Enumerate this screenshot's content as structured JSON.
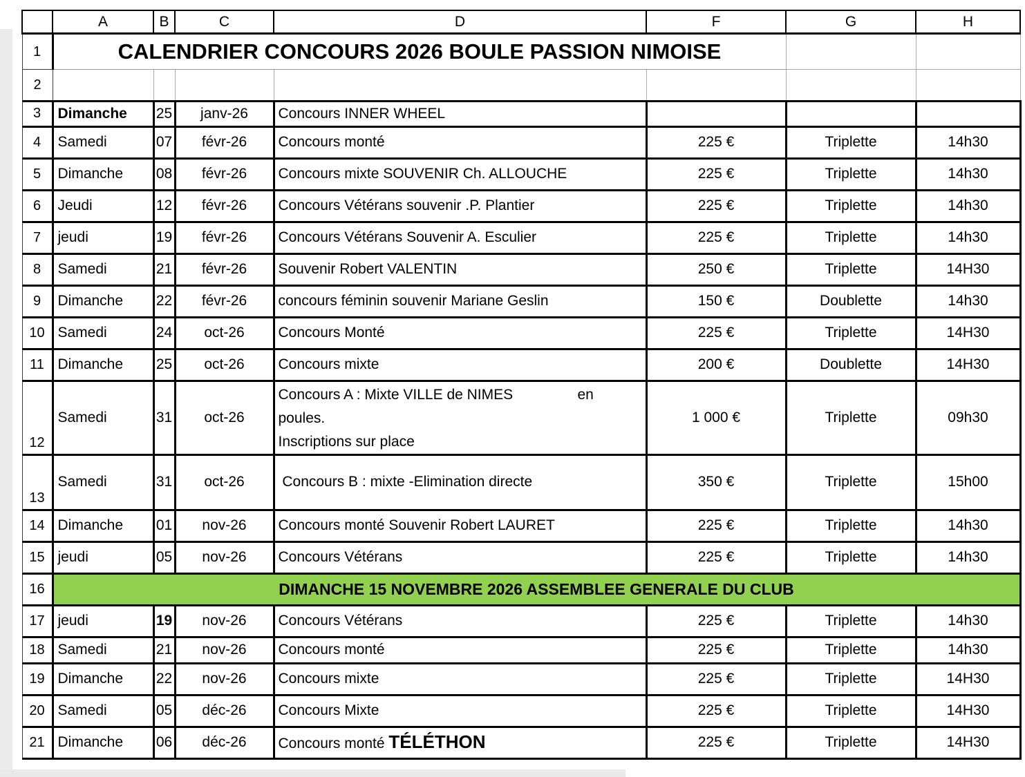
{
  "sheet": {
    "columns": [
      "A",
      "B",
      "C",
      "D",
      "F",
      "G",
      "H"
    ],
    "banner_color": "#92D050",
    "row1": {
      "n": "1",
      "title": "CALENDRIER CONCOURS 2026 BOULE PASSION NIMOISE"
    },
    "row2": {
      "n": "2"
    },
    "rows": [
      {
        "n": "3",
        "a": "Dimanche",
        "a_bold": true,
        "b": "25",
        "c": "janv-26",
        "d": "Concours INNER WHEEL",
        "f": "",
        "g": "",
        "h": ""
      },
      {
        "n": "4",
        "a": "Samedi",
        "b": "07",
        "c": "févr-26",
        "d": "Concours monté",
        "f": "225 €",
        "g": "Triplette",
        "h": "14h30"
      },
      {
        "n": "5",
        "a": "Dimanche",
        "b": "08",
        "c": "févr-26",
        "d": "Concours mixte SOUVENIR Ch. ALLOUCHE",
        "f": "225 €",
        "g": "Triplette",
        "h": "14h30"
      },
      {
        "n": "6",
        "a": "Jeudi",
        "b": "12",
        "c": "févr-26",
        "d": "Concours Vétérans souvenir .P. Plantier",
        "f": "225 €",
        "g": "Triplette",
        "h": "14h30"
      },
      {
        "n": "7",
        "a": "jeudi",
        "b": "19",
        "c": "févr-26",
        "d": "Concours Vétérans Souvenir A. Esculier",
        "f": "225 €",
        "g": "Triplette",
        "h": "14h30"
      },
      {
        "n": "8",
        "a": "Samedi",
        "b": "21",
        "c": "févr-26",
        "d": "Souvenir Robert VALENTIN",
        "f": "250 €",
        "g": "Triplette",
        "h": "14H30"
      },
      {
        "n": "9",
        "a": "Dimanche",
        "b": "22",
        "c": "févr-26",
        "d": "concours féminin souvenir Mariane Geslin",
        "f": "150 €",
        "g": "Doublette",
        "h": "14h30"
      },
      {
        "n": "10",
        "a": "Samedi",
        "b": "24",
        "c": "oct-26",
        "d": "Concours Monté",
        "f": "225 €",
        "g": "Triplette",
        "h": "14H30"
      },
      {
        "n": "11",
        "a": "Dimanche",
        "b": "25",
        "c": "oct-26",
        "d": "Concours mixte",
        "f": "200 €",
        "g": "Doublette",
        "h": "14H30"
      },
      {
        "n": "12",
        "a": "Samedi",
        "b": "31",
        "c": "oct-26",
        "d": "Concours A : Mixte VILLE de NIMES                en \npoules. \nInscriptions sur place",
        "f": "1 000 €",
        "g": "Triplette",
        "h": "09h30"
      },
      {
        "n": "13",
        "a": "Samedi",
        "b": "31",
        "c": "oct-26",
        "d": " Concours B : mixte -Elimination directe",
        "f": "350 €",
        "g": "Triplette",
        "h": "15h00"
      },
      {
        "n": "14",
        "a": "Dimanche",
        "b": "01",
        "c": "nov-26",
        "d": "Concours monté Souvenir Robert LAURET",
        "f": "225 €",
        "g": "Triplette",
        "h": "14h30"
      },
      {
        "n": "15",
        "a": "jeudi",
        "b": "05",
        "c": "nov-26",
        "d": "Concours Vétérans",
        "f": "225 €",
        "g": "Triplette",
        "h": "14h30"
      },
      {
        "type": "banner",
        "n": "16",
        "text": "DIMANCHE 15 NOVEMBRE 2026 ASSEMBLEE GENERALE DU CLUB"
      },
      {
        "n": "17",
        "a": "jeudi",
        "b": "19",
        "b_bold": true,
        "c": "nov-26",
        "d": "Concours Vétérans",
        "f": "225 €",
        "g": "Triplette",
        "h": "14h30"
      },
      {
        "n": "18",
        "a": "Samedi",
        "b": "21",
        "c": "nov-26",
        "d": "Concours monté",
        "f": "225 €",
        "g": "Triplette",
        "h": "14h30"
      },
      {
        "n": "19",
        "a": "Dimanche",
        "b": "22",
        "c": "nov-26",
        "d": "Concours mixte",
        "f": "225 €",
        "g": "Triplette",
        "h": "14H30"
      },
      {
        "n": "20",
        "a": "Samedi",
        "b": "05",
        "c": "déc-26",
        "d": "Concours Mixte",
        "f": "225 €",
        "g": "Triplette",
        "h": "14H30"
      },
      {
        "n": "21",
        "a": "Dimanche",
        "b": "06",
        "c": "déc-26",
        "d": "Concours monté ",
        "d_bold": "TÉLÉTHON",
        "f": "225 €",
        "g": "Triplette",
        "h": "14H30"
      }
    ]
  }
}
